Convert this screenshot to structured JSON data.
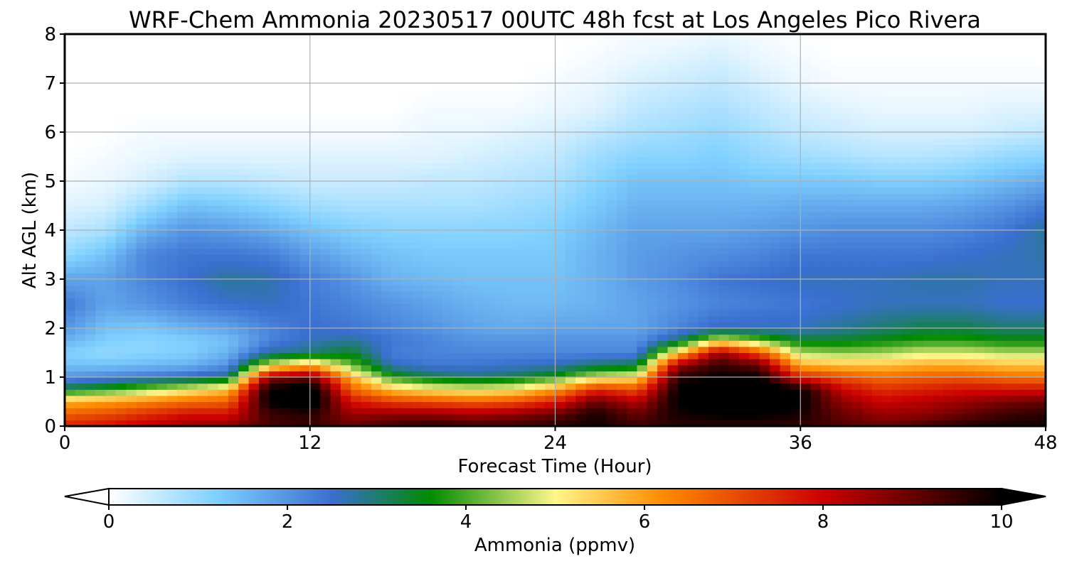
{
  "chart_data": {
    "type": "heatmap",
    "title": "WRF-Chem Ammonia  20230517 00UTC 48h fcst at Los Angeles Pico Rivera",
    "xlabel": "Forecast Time (Hour)",
    "ylabel": "Alt AGL (km)",
    "xlim": [
      0,
      48
    ],
    "ylim": [
      0,
      8
    ],
    "xticks": [
      0,
      12,
      24,
      36,
      48
    ],
    "xtick_labels": [
      "0",
      "12",
      "24",
      "36",
      "48"
    ],
    "yticks": [
      0,
      1,
      2,
      3,
      4,
      5,
      6,
      7,
      8
    ],
    "ytick_labels": [
      "0",
      "1",
      "2",
      "3",
      "4",
      "5",
      "6",
      "7",
      "8"
    ],
    "grid": true,
    "colorbar": {
      "label": "Ammonia  (ppmv)",
      "range": [
        0,
        10
      ],
      "extend": "both",
      "ticks": [
        0,
        2,
        4,
        6,
        8,
        10
      ],
      "tick_labels": [
        "0",
        "2",
        "4",
        "6",
        "8",
        "10"
      ],
      "colors": [
        "#ffffff",
        "#7fd0ff",
        "#3a6fd0",
        "#008a00",
        "#fff68a",
        "#ff8c00",
        "#cc0000",
        "#000000"
      ],
      "color_stops": [
        0,
        1.2,
        2.5,
        3.6,
        5,
        6.2,
        8,
        10
      ]
    },
    "hours": [
      0,
      2,
      4,
      6,
      8,
      10,
      12,
      14,
      16,
      18,
      20,
      22,
      24,
      26,
      28,
      30,
      32,
      34,
      36,
      38,
      40,
      42,
      44,
      46,
      48
    ],
    "altitudes_km": [
      0,
      0.25,
      0.5,
      0.75,
      1,
      1.25,
      1.5,
      1.75,
      2,
      2.5,
      3,
      3.5,
      4,
      4.5,
      5,
      5.5,
      6,
      6.5,
      7,
      7.5,
      8
    ],
    "values": [
      [
        7.6,
        7.8,
        8.2,
        8.5,
        8.6,
        9.3,
        9.5,
        9.0,
        9.4,
        9.6,
        9.4,
        9.4,
        9.6,
        9.8,
        9.4,
        9.6,
        9.6,
        9.6,
        9.5,
        9.2,
        9.0,
        9.3,
        9.6,
        9.8,
        9.8
      ],
      [
        6.8,
        7.0,
        7.4,
        7.8,
        7.8,
        9.4,
        9.6,
        8.5,
        8.6,
        8.6,
        8.4,
        8.6,
        9.0,
        9.8,
        9.0,
        9.8,
        10.0,
        10.0,
        9.8,
        9.0,
        8.5,
        8.6,
        9.0,
        9.4,
        9.6
      ],
      [
        5.8,
        6.0,
        6.3,
        6.6,
        6.8,
        10.0,
        10.5,
        7.8,
        7.2,
        7.0,
        6.8,
        7.0,
        7.6,
        9.0,
        8.2,
        10.0,
        10.5,
        10.5,
        10.0,
        8.6,
        8.0,
        8.2,
        8.5,
        8.8,
        9.0
      ],
      [
        3.4,
        3.8,
        4.4,
        5.0,
        5.6,
        10.0,
        10.5,
        6.8,
        5.6,
        5.2,
        5.0,
        5.2,
        6.0,
        7.5,
        7.0,
        10.0,
        10.5,
        10.5,
        10.0,
        8.0,
        7.4,
        7.6,
        7.8,
        7.8,
        7.8
      ],
      [
        2.0,
        2.2,
        2.4,
        2.6,
        3.0,
        8.6,
        9.0,
        5.8,
        3.8,
        3.2,
        3.0,
        3.2,
        3.8,
        4.8,
        5.2,
        9.6,
        10.0,
        10.0,
        7.6,
        7.0,
        6.6,
        6.8,
        6.9,
        6.6,
        6.5
      ],
      [
        1.4,
        1.4,
        1.5,
        1.6,
        2.0,
        4.8,
        5.8,
        4.2,
        2.6,
        2.4,
        2.4,
        2.5,
        2.6,
        3.0,
        3.2,
        8.5,
        9.5,
        9.0,
        5.8,
        5.6,
        5.6,
        5.8,
        5.8,
        5.6,
        5.6
      ],
      [
        1.2,
        1.0,
        1.1,
        1.2,
        1.6,
        2.8,
        3.0,
        3.4,
        2.3,
        2.2,
        2.2,
        2.2,
        2.2,
        2.2,
        2.2,
        5.5,
        8.5,
        7.0,
        4.6,
        4.4,
        4.5,
        4.8,
        4.8,
        4.6,
        4.6
      ],
      [
        1.6,
        1.2,
        1.1,
        1.2,
        1.4,
        2.2,
        2.6,
        2.8,
        2.4,
        2.2,
        2.0,
        2.0,
        2.0,
        2.0,
        2.0,
        3.0,
        5.0,
        4.2,
        3.4,
        3.4,
        3.6,
        3.8,
        3.8,
        3.6,
        3.6
      ],
      [
        2.0,
        1.4,
        1.3,
        1.6,
        1.8,
        2.2,
        2.5,
        2.4,
        2.2,
        2.0,
        1.8,
        1.7,
        1.8,
        1.8,
        1.8,
        2.2,
        2.6,
        2.6,
        2.6,
        2.8,
        3.0,
        3.2,
        3.2,
        3.0,
        3.0
      ],
      [
        2.4,
        1.8,
        2.0,
        2.3,
        2.5,
        2.6,
        2.4,
        2.2,
        2.0,
        1.8,
        1.6,
        1.5,
        1.5,
        1.6,
        1.8,
        2.0,
        2.2,
        2.3,
        2.4,
        2.5,
        2.6,
        2.6,
        2.6,
        2.5,
        2.5
      ],
      [
        1.8,
        1.8,
        2.2,
        2.5,
        2.8,
        2.7,
        2.3,
        2.0,
        1.6,
        1.5,
        1.4,
        1.4,
        1.4,
        1.6,
        1.9,
        2.1,
        2.4,
        2.5,
        2.6,
        2.6,
        2.6,
        2.7,
        2.7,
        2.6,
        2.6
      ],
      [
        1.0,
        1.4,
        2.2,
        2.4,
        2.4,
        2.3,
        1.9,
        1.6,
        1.4,
        1.3,
        1.3,
        1.3,
        1.3,
        1.6,
        1.9,
        2.0,
        2.1,
        2.2,
        2.4,
        2.4,
        2.4,
        2.4,
        2.5,
        2.6,
        2.7
      ],
      [
        0.6,
        0.8,
        1.6,
        2.0,
        1.9,
        1.7,
        1.4,
        1.2,
        1.1,
        1.1,
        1.1,
        1.1,
        1.2,
        1.5,
        1.8,
        1.8,
        1.8,
        1.9,
        2.0,
        2.1,
        2.1,
        2.1,
        2.2,
        2.4,
        2.8
      ],
      [
        0.3,
        0.4,
        0.9,
        1.4,
        1.3,
        1.1,
        0.9,
        0.8,
        0.8,
        0.8,
        0.8,
        0.9,
        1.0,
        1.3,
        1.6,
        1.6,
        1.6,
        1.6,
        1.7,
        1.7,
        1.7,
        1.7,
        1.8,
        2.0,
        2.3
      ],
      [
        0.1,
        0.2,
        0.4,
        0.7,
        0.7,
        0.6,
        0.5,
        0.5,
        0.5,
        0.6,
        0.6,
        0.7,
        0.8,
        1.1,
        1.4,
        1.4,
        1.4,
        1.3,
        1.3,
        1.3,
        1.2,
        1.2,
        1.3,
        1.5,
        1.7
      ],
      [
        0.0,
        0.1,
        0.2,
        0.3,
        0.3,
        0.3,
        0.3,
        0.3,
        0.3,
        0.3,
        0.4,
        0.5,
        0.6,
        0.9,
        1.1,
        1.1,
        1.2,
        1.0,
        0.9,
        0.8,
        0.7,
        0.7,
        0.8,
        1.0,
        1.1
      ],
      [
        0.0,
        0.0,
        0.1,
        0.1,
        0.1,
        0.1,
        0.1,
        0.1,
        0.1,
        0.2,
        0.2,
        0.3,
        0.4,
        0.6,
        0.8,
        0.9,
        1.0,
        0.8,
        0.6,
        0.5,
        0.4,
        0.4,
        0.4,
        0.5,
        0.6
      ],
      [
        0.0,
        0.0,
        0.0,
        0.0,
        0.0,
        0.0,
        0.0,
        0.0,
        0.0,
        0.1,
        0.1,
        0.1,
        0.2,
        0.3,
        0.6,
        0.7,
        0.8,
        0.6,
        0.4,
        0.3,
        0.2,
        0.2,
        0.2,
        0.3,
        0.3
      ],
      [
        0.0,
        0.0,
        0.0,
        0.0,
        0.0,
        0.0,
        0.0,
        0.0,
        0.0,
        0.0,
        0.0,
        0.0,
        0.1,
        0.2,
        0.4,
        0.5,
        0.6,
        0.4,
        0.2,
        0.1,
        0.1,
        0.1,
        0.1,
        0.1,
        0.1
      ],
      [
        0.0,
        0.0,
        0.0,
        0.0,
        0.0,
        0.0,
        0.0,
        0.0,
        0.0,
        0.0,
        0.0,
        0.0,
        0.0,
        0.1,
        0.2,
        0.3,
        0.4,
        0.2,
        0.1,
        0.0,
        0.0,
        0.0,
        0.0,
        0.0,
        0.0
      ],
      [
        0.0,
        0.0,
        0.0,
        0.0,
        0.0,
        0.0,
        0.0,
        0.0,
        0.0,
        0.0,
        0.0,
        0.0,
        0.0,
        0.0,
        0.1,
        0.1,
        0.2,
        0.1,
        0.0,
        0.0,
        0.0,
        0.0,
        0.0,
        0.0,
        0.0
      ]
    ]
  }
}
